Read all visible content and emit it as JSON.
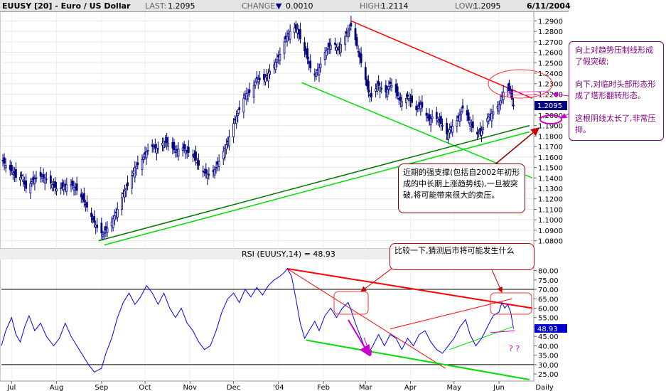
{
  "header": {
    "symbol": "EUUSY [20] - Euro / US Dollar",
    "last_label": "LAST:",
    "last_value": "1.2095",
    "change_label": "CHANGE:",
    "change_value": "0.0010",
    "high_label": "HIGH:",
    "high_value": "1.2114",
    "low_label": "LOW:",
    "low_value": "1.2095",
    "date": "6/11/2004"
  },
  "annotations": {
    "right_box": "向上对趋势压制线形成了假突破;\n\n向下,对临时头部形态形成了塔形翻转形态。\n\n这根阴线太长了,非常压抑。",
    "support_box": "近期的强支撑(包括自2002年初形成的中长期上涨趋势线),一旦被突破,将可能带来很大的卖压。",
    "rsi_box": "比较一下,猜测后市将可能发生什么",
    "question_marks": "? ?"
  },
  "chart_data": [
    {
      "type": "candlestick",
      "title": "EUUSY [20] - Euro / US Dollar",
      "ylim": [
        1.075,
        1.295
      ],
      "y_ticks": [
        "1.2900",
        "1.2800",
        "1.2700",
        "1.2600",
        "1.2500",
        "1.2400",
        "1.2300",
        "1.2200",
        "1.2100",
        "1.2000",
        "1.1900",
        "1.1800",
        "1.1700",
        "1.1600",
        "1.1500",
        "1.1400",
        "1.1300",
        "1.1200",
        "1.1100",
        "1.1000",
        "1.0900",
        "1.0800"
      ],
      "last_price_label": "1.2095",
      "x_tick_labels": [
        "Jul",
        "Aug",
        "Sep",
        "Oct",
        "Nov",
        "Dec",
        "'04",
        "Feb",
        "Mar",
        "Apr",
        "May",
        "Jun",
        "Daily"
      ],
      "x_tick_dates": [
        "2003-07-01",
        "2003-08-01",
        "2003-09-01",
        "2003-10-01",
        "2003-11-01",
        "2003-12-01",
        "2004-01-01",
        "2004-02-01",
        "2004-03-01",
        "2004-04-01",
        "2004-05-01",
        "2004-06-01"
      ],
      "x_range": [
        "2003-06-24",
        "2004-06-24"
      ],
      "close_path": [
        [
          "2003-06-24",
          1.158
        ],
        [
          "2003-06-27",
          1.152
        ],
        [
          "2003-07-02",
          1.145
        ],
        [
          "2003-07-05",
          1.138
        ],
        [
          "2003-07-08",
          1.142
        ],
        [
          "2003-07-11",
          1.13
        ],
        [
          "2003-07-16",
          1.138
        ],
        [
          "2003-07-20",
          1.142
        ],
        [
          "2003-07-24",
          1.14
        ],
        [
          "2003-07-28",
          1.135
        ],
        [
          "2003-08-02",
          1.128
        ],
        [
          "2003-08-06",
          1.132
        ],
        [
          "2003-08-10",
          1.135
        ],
        [
          "2003-08-14",
          1.13
        ],
        [
          "2003-08-18",
          1.122
        ],
        [
          "2003-08-22",
          1.112
        ],
        [
          "2003-08-26",
          1.1
        ],
        [
          "2003-08-30",
          1.09
        ],
        [
          "2003-09-02",
          1.086
        ],
        [
          "2003-09-05",
          1.092
        ],
        [
          "2003-09-08",
          1.098
        ],
        [
          "2003-09-12",
          1.11
        ],
        [
          "2003-09-16",
          1.125
        ],
        [
          "2003-09-20",
          1.135
        ],
        [
          "2003-09-24",
          1.15
        ],
        [
          "2003-09-28",
          1.155
        ],
        [
          "2003-10-02",
          1.165
        ],
        [
          "2003-10-06",
          1.17
        ],
        [
          "2003-10-10",
          1.168
        ],
        [
          "2003-10-14",
          1.175
        ],
        [
          "2003-10-18",
          1.172
        ],
        [
          "2003-10-22",
          1.165
        ],
        [
          "2003-10-26",
          1.17
        ],
        [
          "2003-10-30",
          1.165
        ],
        [
          "2003-11-03",
          1.162
        ],
        [
          "2003-11-07",
          1.152
        ],
        [
          "2003-11-11",
          1.145
        ],
        [
          "2003-11-15",
          1.142
        ],
        [
          "2003-11-19",
          1.15
        ],
        [
          "2003-11-23",
          1.162
        ],
        [
          "2003-11-27",
          1.175
        ],
        [
          "2003-12-01",
          1.192
        ],
        [
          "2003-12-05",
          1.205
        ],
        [
          "2003-12-09",
          1.22
        ],
        [
          "2003-12-13",
          1.222
        ],
        [
          "2003-12-17",
          1.235
        ],
        [
          "2003-12-21",
          1.232
        ],
        [
          "2003-12-25",
          1.24
        ],
        [
          "2003-12-29",
          1.248
        ],
        [
          "2004-01-02",
          1.258
        ],
        [
          "2004-01-05",
          1.27
        ],
        [
          "2004-01-08",
          1.278
        ],
        [
          "2004-01-11",
          1.284
        ],
        [
          "2004-01-14",
          1.282
        ],
        [
          "2004-01-17",
          1.268
        ],
        [
          "2004-01-20",
          1.258
        ],
        [
          "2004-01-23",
          1.245
        ],
        [
          "2004-01-26",
          1.238
        ],
        [
          "2004-01-29",
          1.245
        ],
        [
          "2004-02-02",
          1.26
        ],
        [
          "2004-02-05",
          1.265
        ],
        [
          "2004-02-08",
          1.27
        ],
        [
          "2004-02-11",
          1.262
        ],
        [
          "2004-02-14",
          1.27
        ],
        [
          "2004-02-17",
          1.278
        ],
        [
          "2004-02-20",
          1.285
        ],
        [
          "2004-02-23",
          1.272
        ],
        [
          "2004-02-26",
          1.255
        ],
        [
          "2004-02-29",
          1.24
        ],
        [
          "2004-03-03",
          1.222
        ],
        [
          "2004-03-06",
          1.215
        ],
        [
          "2004-03-09",
          1.23
        ],
        [
          "2004-03-12",
          1.225
        ],
        [
          "2004-03-15",
          1.222
        ],
        [
          "2004-03-18",
          1.23
        ],
        [
          "2004-03-21",
          1.225
        ],
        [
          "2004-03-24",
          1.215
        ],
        [
          "2004-03-27",
          1.212
        ],
        [
          "2004-03-30",
          1.218
        ],
        [
          "2004-04-02",
          1.212
        ],
        [
          "2004-04-05",
          1.205
        ],
        [
          "2004-04-08",
          1.21
        ],
        [
          "2004-04-11",
          1.202
        ],
        [
          "2004-04-14",
          1.195
        ],
        [
          "2004-04-17",
          1.2
        ],
        [
          "2004-04-20",
          1.195
        ],
        [
          "2004-04-23",
          1.19
        ],
        [
          "2004-04-26",
          1.182
        ],
        [
          "2004-04-29",
          1.188
        ],
        [
          "2004-05-02",
          1.192
        ],
        [
          "2004-05-05",
          1.2
        ],
        [
          "2004-05-08",
          1.21
        ],
        [
          "2004-05-11",
          1.195
        ],
        [
          "2004-05-14",
          1.188
        ],
        [
          "2004-05-17",
          1.182
        ],
        [
          "2004-05-20",
          1.185
        ],
        [
          "2004-05-23",
          1.195
        ],
        [
          "2004-05-26",
          1.2
        ],
        [
          "2004-05-29",
          1.205
        ],
        [
          "2004-06-01",
          1.21
        ],
        [
          "2004-06-04",
          1.222
        ],
        [
          "2004-06-07",
          1.225
        ],
        [
          "2004-06-09",
          1.222
        ],
        [
          "2004-06-10",
          1.215
        ],
        [
          "2004-06-11",
          1.2095
        ]
      ],
      "trend_lines": [
        {
          "color": "#ff0000",
          "from": [
            "2004-02-20",
            1.29
          ],
          "to": [
            "2004-06-24",
            1.216
          ]
        },
        {
          "color": "#00dd00",
          "from": [
            "2004-01-17",
            1.231
          ],
          "to": [
            "2004-06-24",
            1.14
          ]
        },
        {
          "color": "#007700",
          "from": [
            "2003-08-30",
            1.08
          ],
          "to": [
            "2004-06-22",
            1.19
          ]
        },
        {
          "color": "#00dd00",
          "from": [
            "2003-09-03",
            1.076
          ],
          "to": [
            "2004-06-22",
            1.184
          ]
        }
      ]
    },
    {
      "type": "line",
      "title": "RSI (EUUSY,14) = 48.93",
      "ylim": [
        22,
        84
      ],
      "y_ticks": [
        "80.00",
        "75.00",
        "70.00",
        "65.00",
        "60.00",
        "55.00",
        "50.00",
        "45.00",
        "40.00",
        "35.00",
        "30.00",
        "25.00"
      ],
      "overbought": 70,
      "oversold": 30,
      "last_label": "48.93",
      "series": [
        {
          "values_path": [
            [
              "2003-06-24",
              40
            ],
            [
              "2003-06-27",
              48
            ],
            [
              "2003-07-01",
              55
            ],
            [
              "2003-07-04",
              46
            ],
            [
              "2003-07-07",
              42
            ],
            [
              "2003-07-10",
              50
            ],
            [
              "2003-07-13",
              56
            ],
            [
              "2003-07-17",
              48
            ],
            [
              "2003-07-21",
              52
            ],
            [
              "2003-07-25",
              45
            ],
            [
              "2003-07-30",
              40
            ],
            [
              "2003-08-03",
              44
            ],
            [
              "2003-08-07",
              52
            ],
            [
              "2003-08-11",
              45
            ],
            [
              "2003-08-15",
              40
            ],
            [
              "2003-08-19",
              35
            ],
            [
              "2003-08-23",
              30
            ],
            [
              "2003-08-27",
              26
            ],
            [
              "2003-09-01",
              28
            ],
            [
              "2003-09-04",
              36
            ],
            [
              "2003-09-08",
              44
            ],
            [
              "2003-09-12",
              55
            ],
            [
              "2003-09-16",
              63
            ],
            [
              "2003-09-20",
              68
            ],
            [
              "2003-09-24",
              62
            ],
            [
              "2003-09-28",
              66
            ],
            [
              "2003-10-02",
              72
            ],
            [
              "2003-10-06",
              68
            ],
            [
              "2003-10-10",
              62
            ],
            [
              "2003-10-14",
              68
            ],
            [
              "2003-10-18",
              60
            ],
            [
              "2003-10-22",
              55
            ],
            [
              "2003-10-26",
              60
            ],
            [
              "2003-10-30",
              52
            ],
            [
              "2003-11-03",
              48
            ],
            [
              "2003-11-07",
              42
            ],
            [
              "2003-11-11",
              38
            ],
            [
              "2003-11-15",
              40
            ],
            [
              "2003-11-19",
              48
            ],
            [
              "2003-11-23",
              58
            ],
            [
              "2003-11-27",
              65
            ],
            [
              "2003-12-01",
              68
            ],
            [
              "2003-12-05",
              63
            ],
            [
              "2003-12-09",
              70
            ],
            [
              "2003-12-13",
              66
            ],
            [
              "2003-12-17",
              71
            ],
            [
              "2003-12-21",
              67
            ],
            [
              "2003-12-25",
              72
            ],
            [
              "2003-12-29",
              75
            ],
            [
              "2004-01-02",
              77
            ],
            [
              "2004-01-05",
              79
            ],
            [
              "2004-01-07",
              81
            ],
            [
              "2004-01-10",
              77
            ],
            [
              "2004-01-13",
              65
            ],
            [
              "2004-01-16",
              52
            ],
            [
              "2004-01-19",
              44
            ],
            [
              "2004-01-22",
              48
            ],
            [
              "2004-01-26",
              53
            ],
            [
              "2004-01-29",
              48
            ],
            [
              "2004-02-02",
              56
            ],
            [
              "2004-02-06",
              60
            ],
            [
              "2004-02-10",
              55
            ],
            [
              "2004-02-14",
              60
            ],
            [
              "2004-02-18",
              63
            ],
            [
              "2004-02-20",
              59
            ],
            [
              "2004-02-23",
              52
            ],
            [
              "2004-02-26",
              46
            ],
            [
              "2004-02-29",
              40
            ],
            [
              "2004-03-03",
              36
            ],
            [
              "2004-03-06",
              40
            ],
            [
              "2004-03-10",
              46
            ],
            [
              "2004-03-14",
              40
            ],
            [
              "2004-03-18",
              46
            ],
            [
              "2004-03-22",
              44
            ],
            [
              "2004-03-26",
              38
            ],
            [
              "2004-03-30",
              44
            ],
            [
              "2004-04-03",
              40
            ],
            [
              "2004-04-07",
              46
            ],
            [
              "2004-04-11",
              48
            ],
            [
              "2004-04-15",
              42
            ],
            [
              "2004-04-19",
              38
            ],
            [
              "2004-04-23",
              36
            ],
            [
              "2004-04-27",
              40
            ],
            [
              "2004-05-01",
              44
            ],
            [
              "2004-05-05",
              50
            ],
            [
              "2004-05-09",
              54
            ],
            [
              "2004-05-12",
              46
            ],
            [
              "2004-05-16",
              40
            ],
            [
              "2004-05-20",
              44
            ],
            [
              "2004-05-24",
              50
            ],
            [
              "2004-05-28",
              56
            ],
            [
              "2004-06-01",
              58
            ],
            [
              "2004-06-03",
              63
            ],
            [
              "2004-06-05",
              60
            ],
            [
              "2004-06-07",
              62
            ],
            [
              "2004-06-09",
              58
            ],
            [
              "2004-06-11",
              49
            ]
          ]
        }
      ],
      "trend_lines": [
        {
          "color": "#ff0000",
          "from": [
            "2004-01-07",
            81
          ],
          "to": [
            "2004-06-24",
            60
          ],
          "width": 2
        },
        {
          "color": "#ff0000",
          "from": [
            "2004-01-07",
            81
          ],
          "to": [
            "2004-04-25",
            28
          ],
          "width": 1
        },
        {
          "color": "#00dd00",
          "from": [
            "2004-01-20",
            43
          ],
          "to": [
            "2004-06-22",
            22
          ],
          "width": 2
        },
        {
          "color": "#ff0000",
          "from": [
            "2004-03-18",
            49
          ],
          "to": [
            "2004-06-10",
            65
          ],
          "width": 1
        },
        {
          "color": "#00dd00",
          "from": [
            "2004-04-28",
            38
          ],
          "to": [
            "2004-06-10",
            50
          ],
          "width": 1
        },
        {
          "color": "#cc00cc",
          "from": [
            "2004-05-26",
            47
          ],
          "to": [
            "2004-06-12",
            48
          ],
          "width": 1
        }
      ]
    }
  ]
}
